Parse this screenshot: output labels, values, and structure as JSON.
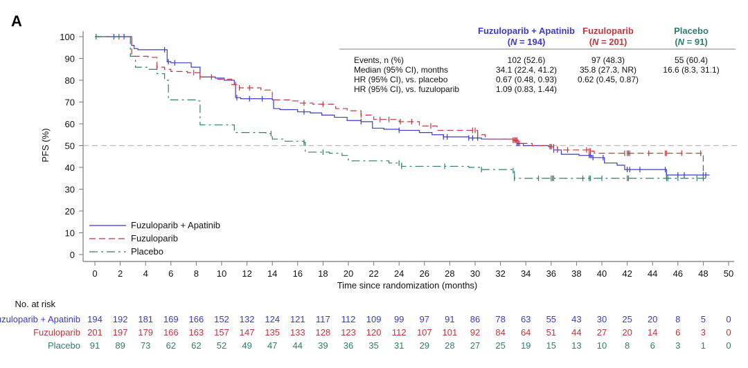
{
  "panel_label": "A",
  "chart_data": {
    "type": "line",
    "subtype": "kaplan-meier",
    "title": "",
    "xlabel": "Time since randomization (months)",
    "ylabel": "PFS (%)",
    "xlim": [
      0,
      50
    ],
    "ylim": [
      0,
      100
    ],
    "xticks": [
      0,
      2,
      4,
      6,
      8,
      10,
      12,
      14,
      16,
      18,
      20,
      22,
      24,
      26,
      28,
      30,
      32,
      34,
      36,
      38,
      40,
      42,
      44,
      46,
      48,
      50
    ],
    "yticks": [
      0,
      10,
      20,
      30,
      40,
      50,
      60,
      70,
      80,
      90,
      100
    ],
    "reference_line": {
      "y": 50,
      "style": "dashed",
      "color": "#bbbbbb"
    },
    "grid": false,
    "legend_position": "bottom-left",
    "series": [
      {
        "name": "Fuzuloparib + Apatinib",
        "color": "#3a3acc",
        "dash": "solid",
        "steps": [
          [
            0,
            100
          ],
          [
            2.8,
            100
          ],
          [
            2.9,
            96
          ],
          [
            3.1,
            94.5
          ],
          [
            3.4,
            94
          ],
          [
            5.6,
            94
          ],
          [
            5.7,
            88.5
          ],
          [
            6.0,
            88
          ],
          [
            7.5,
            88
          ],
          [
            7.6,
            86
          ],
          [
            8.3,
            81.5
          ],
          [
            9.5,
            81
          ],
          [
            10.2,
            80
          ],
          [
            11.0,
            78
          ],
          [
            11.1,
            72
          ],
          [
            11.5,
            71.5
          ],
          [
            12.5,
            71.5
          ],
          [
            14.0,
            71
          ],
          [
            14.1,
            67
          ],
          [
            14.6,
            66.5
          ],
          [
            15.5,
            66.5
          ],
          [
            16.0,
            65.5
          ],
          [
            17.0,
            65
          ],
          [
            17.9,
            64
          ],
          [
            18.9,
            63
          ],
          [
            19.9,
            61.5
          ],
          [
            21.0,
            61
          ],
          [
            21.9,
            58
          ],
          [
            22.8,
            57.5
          ],
          [
            24.0,
            57
          ],
          [
            25.6,
            56
          ],
          [
            26.6,
            55
          ],
          [
            27.5,
            54
          ],
          [
            29.5,
            53.5
          ],
          [
            30.5,
            53
          ],
          [
            33.0,
            52.5
          ],
          [
            33.3,
            51
          ],
          [
            33.8,
            50
          ],
          [
            35.8,
            49.5
          ],
          [
            36.2,
            48
          ],
          [
            36.8,
            46
          ],
          [
            38.2,
            45.5
          ],
          [
            39.2,
            44.5
          ],
          [
            40.2,
            42
          ],
          [
            41.2,
            41
          ],
          [
            41.8,
            39
          ],
          [
            45.0,
            39
          ],
          [
            45.1,
            36.5
          ],
          [
            48.5,
            36.5
          ]
        ],
        "censor_times": [
          1.5,
          2.3,
          5.5,
          5.8,
          6.3,
          11.2,
          12.2,
          13.2,
          16.5,
          21.0,
          24.0,
          27.5,
          27.8,
          29.5,
          29.8,
          30.2,
          33.0,
          33.2,
          33.3,
          33.4,
          36.0,
          36.2,
          36.5,
          39.0,
          39.1,
          39.3,
          40.1,
          42.0,
          42.2,
          43.0,
          45.0,
          45.1,
          46.0,
          46.5,
          48.0,
          48.2
        ],
        "at_risk": [
          194,
          192,
          181,
          169,
          166,
          152,
          132,
          124,
          121,
          117,
          112,
          109,
          99,
          97,
          91,
          86,
          78,
          63,
          55,
          43,
          30,
          25,
          20,
          8,
          5,
          0
        ]
      },
      {
        "name": "Fuzuloparib",
        "color": "#c0363b",
        "dash": "dashed",
        "steps": [
          [
            0,
            100
          ],
          [
            2.8,
            100
          ],
          [
            2.9,
            91
          ],
          [
            4.2,
            90.5
          ],
          [
            4.9,
            86
          ],
          [
            5.5,
            85
          ],
          [
            6.0,
            84
          ],
          [
            7.3,
            83.5
          ],
          [
            8.3,
            81.5
          ],
          [
            9.5,
            80.5
          ],
          [
            10.8,
            78
          ],
          [
            11.4,
            76.5
          ],
          [
            12.3,
            76.5
          ],
          [
            13.1,
            75.5
          ],
          [
            14.0,
            71
          ],
          [
            15.5,
            70.5
          ],
          [
            16.1,
            69.5
          ],
          [
            17.2,
            69
          ],
          [
            19.0,
            67
          ],
          [
            19.9,
            66
          ],
          [
            21.0,
            64
          ],
          [
            22.0,
            62
          ],
          [
            23.5,
            62
          ],
          [
            24.0,
            61
          ],
          [
            25.6,
            59
          ],
          [
            27.0,
            57
          ],
          [
            29.5,
            57
          ],
          [
            30.2,
            55
          ],
          [
            30.8,
            53
          ],
          [
            33.0,
            52.5
          ],
          [
            33.4,
            51
          ],
          [
            34.5,
            50
          ],
          [
            35.8,
            49.5
          ],
          [
            36.5,
            48
          ],
          [
            38.0,
            48
          ],
          [
            39.0,
            47.5
          ],
          [
            39.4,
            46.5
          ],
          [
            47.9,
            46.5
          ],
          [
            48.0,
            36
          ]
        ],
        "censor_times": [
          1.9,
          4.9,
          7.8,
          8.3,
          9.2,
          11.1,
          11.4,
          12.2,
          16.5,
          18.0,
          21.0,
          22.5,
          23.2,
          24.1,
          25.0,
          26.5,
          29.8,
          30.0,
          30.2,
          33.0,
          33.1,
          33.2,
          33.3,
          33.5,
          35.9,
          36.0,
          36.2,
          37.3,
          38.8,
          39.0,
          39.1,
          41.8,
          42.0,
          42.1,
          42.2,
          43.7,
          45.0,
          45.1,
          46.3,
          47.8
        ],
        "at_risk": [
          201,
          197,
          179,
          166,
          163,
          157,
          147,
          135,
          133,
          128,
          123,
          120,
          112,
          107,
          101,
          92,
          84,
          64,
          51,
          44,
          27,
          20,
          14,
          6,
          3,
          0
        ]
      },
      {
        "name": "Placebo",
        "color": "#2e7d6e",
        "dash": "dashdot",
        "steps": [
          [
            0,
            100
          ],
          [
            2.7,
            100
          ],
          [
            2.8,
            91
          ],
          [
            3.2,
            86
          ],
          [
            4.1,
            85
          ],
          [
            4.9,
            83
          ],
          [
            5.5,
            80
          ],
          [
            5.8,
            71
          ],
          [
            8.0,
            70.5
          ],
          [
            8.3,
            59.5
          ],
          [
            10.9,
            59.5
          ],
          [
            11.0,
            56
          ],
          [
            13.5,
            55.5
          ],
          [
            14.0,
            53
          ],
          [
            15.0,
            52
          ],
          [
            16.5,
            51.5
          ],
          [
            16.6,
            47
          ],
          [
            18.5,
            46.5
          ],
          [
            19.5,
            45.5
          ],
          [
            20.0,
            43
          ],
          [
            23.2,
            42
          ],
          [
            24.2,
            40.5
          ],
          [
            29.5,
            40
          ],
          [
            30.5,
            39
          ],
          [
            33.0,
            38.5
          ],
          [
            33.1,
            35
          ],
          [
            48.5,
            35
          ]
        ],
        "censor_times": [
          0.1,
          13.9,
          16.5,
          18.0,
          24.0,
          24.2,
          27.6,
          30.5,
          33.0,
          33.1,
          35.0,
          36.0,
          36.1,
          36.2,
          38.5,
          39.0,
          39.1,
          40.0,
          42.0,
          42.1,
          45.1,
          45.2,
          46.0,
          47.5,
          48.0
        ],
        "at_risk": [
          91,
          89,
          73,
          62,
          62,
          52,
          49,
          47,
          44,
          39,
          36,
          35,
          31,
          29,
          28,
          27,
          25,
          19,
          15,
          13,
          10,
          8,
          6,
          3,
          1,
          0
        ]
      }
    ],
    "at_risk_times": [
      0,
      2,
      4,
      6,
      8,
      10,
      12,
      14,
      16,
      18,
      20,
      22,
      24,
      26,
      28,
      30,
      32,
      34,
      36,
      38,
      40,
      42,
      44,
      46,
      48,
      50
    ]
  },
  "stats_table": {
    "columns": [
      {
        "name": "Fuzuloparib + Apatinib",
        "n_label": "194",
        "color": "#3a3acc"
      },
      {
        "name": "Fuzuloparib",
        "n_label": "201",
        "color": "#c0363b"
      },
      {
        "name": "Placebo",
        "n_label": "91",
        "color": "#2e7d6e"
      }
    ],
    "n_prefix": "N",
    "rows": [
      {
        "label": "Events, n (%)",
        "values": [
          "102 (52.6)",
          "97 (48.3)",
          "55 (60.4)"
        ]
      },
      {
        "label": "Median (95% CI), months",
        "values": [
          "34.1 (22.4, 41.2)",
          "35.8 (27.3, NR)",
          "16.6 (8.3, 31.1)"
        ]
      },
      {
        "label": "HR (95% CI), vs. placebo",
        "values": [
          "0.67 (0.48, 0.93)",
          "0.62 (0.45, 0.87)",
          ""
        ]
      },
      {
        "label": "HR (95% CI), vs. fuzuloparib",
        "values": [
          "1.09 (0.83, 1.44)",
          "",
          ""
        ]
      }
    ]
  },
  "risk_table": {
    "title": "No. at risk"
  }
}
